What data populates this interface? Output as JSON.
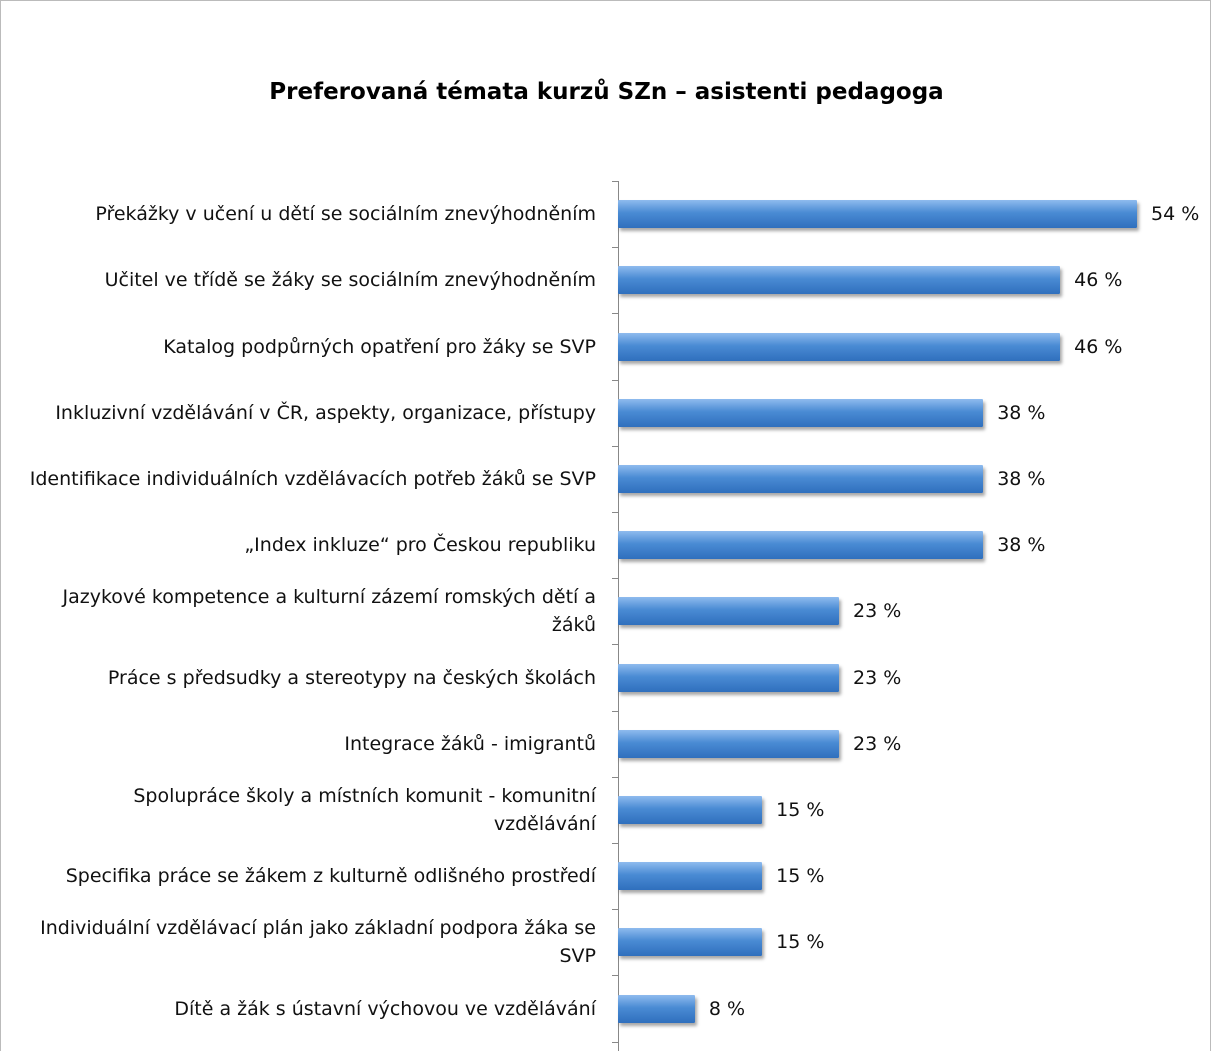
{
  "chart_data": {
    "type": "bar",
    "orientation": "horizontal",
    "title": "Preferovaná témata kurzů SZn – asistenti pedagoga",
    "categories": [
      "Překážky v učení u dětí se sociálním znevýhodněním",
      "Učitel ve třídě se žáky se sociálním znevýhodněním",
      "Katalog podpůrných opatření pro žáky se SVP",
      "Inkluzivní vzdělávání v ČR, aspekty, organizace, přístupy",
      "Identifikace individuálních vzdělávacích potřeb žáků se SVP",
      "„Index inkluze“ pro Českou republiku",
      "Jazykové kompetence a kulturní zázemí romských dětí a žáků",
      "Práce s předsudky a stereotypy na českých školách",
      "Integrace žáků - imigrantů",
      "Spolupráce školy a místních komunit - komunitní vzdělávání",
      "Specifika práce se žákem z kulturně odlišného prostředí",
      "Individuální vzdělávací plán jako základní podpora žáka se SVP",
      "Dítě a žák s ústavní výchovou ve vzdělávání"
    ],
    "values": [
      54,
      46,
      46,
      38,
      38,
      38,
      23,
      23,
      23,
      15,
      15,
      15,
      8
    ],
    "value_labels": [
      "54 %",
      "46 %",
      "46 %",
      "38 %",
      "38 %",
      "38 %",
      "23 %",
      "23 %",
      "23 %",
      "15 %",
      "15 %",
      "15 %",
      "8 %"
    ],
    "color": "#4a8bd4"
  }
}
